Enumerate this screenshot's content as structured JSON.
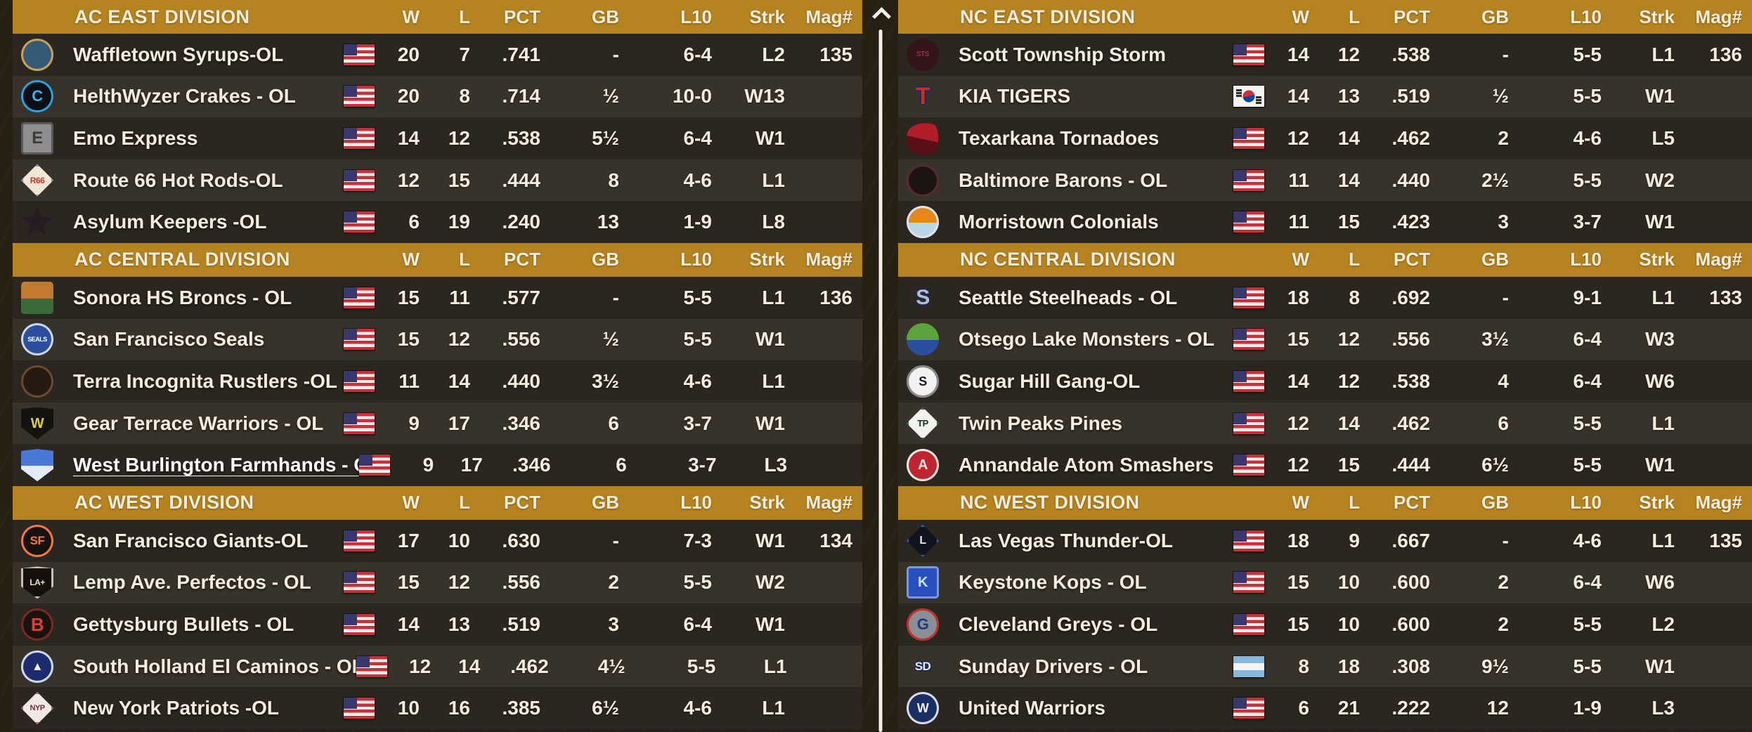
{
  "theme": {
    "header_bg": "#b5831f",
    "row_dark": "#2b2620",
    "row_light": "#37322a",
    "text": "#f4edde",
    "background": "#281f13",
    "scrollbar": "#f2f1ec"
  },
  "columns": [
    "W",
    "L",
    "PCT",
    "GB",
    "L10",
    "Strk",
    "Mag#"
  ],
  "scrollbar": {
    "up_arrow_icon": "chevron-up",
    "thumb": "vertical-line"
  },
  "tables": [
    {
      "side": "left",
      "divisions": [
        {
          "name": "AC EAST DIVISION",
          "teams": [
            {
              "name": "Waffletown Syrups-OL",
              "flag": "usa",
              "w": "20",
              "l": "7",
              "pct": ".741",
              "gb": "-",
              "l10": "6-4",
              "strk": "L2",
              "mag": "135",
              "logo": {
                "shape": "circle",
                "bg": "#355a75",
                "border": "#c9a05a",
                "fg": "#d9b06a",
                "text": "",
                "fs": 14
              }
            },
            {
              "name": "HelthWyzer Crakes - OL",
              "flag": "usa",
              "w": "20",
              "l": "8",
              "pct": ".714",
              "gb": "½",
              "l10": "10-0",
              "strk": "W13",
              "mag": "",
              "logo": {
                "shape": "circle",
                "bg": "#0c1016",
                "border": "#2aa3e0",
                "fg": "#3fb4ec",
                "text": "C",
                "fs": 22
              }
            },
            {
              "name": "Emo Express",
              "flag": "usa",
              "w": "14",
              "l": "12",
              "pct": ".538",
              "gb": "5½",
              "l10": "6-4",
              "strk": "W1",
              "mag": "",
              "logo": {
                "shape": "square",
                "bg": "#8e8e8e",
                "border": "#5a5a5a",
                "fg": "#3c3c3c",
                "text": "E",
                "fs": 24
              }
            },
            {
              "name": "Route 66 Hot Rods-OL",
              "flag": "usa",
              "w": "12",
              "l": "15",
              "pct": ".444",
              "gb": "8",
              "l10": "4-6",
              "strk": "L1",
              "mag": "",
              "logo": {
                "shape": "diamond",
                "bg": "#efe6d6",
                "border": "#8a90bc",
                "fg": "#c23b2e",
                "text": "R66",
                "fs": 12
              }
            },
            {
              "name": "Asylum Keepers -OL",
              "flag": "usa",
              "w": "6",
              "l": "19",
              "pct": ".240",
              "gb": "13",
              "l10": "1-9",
              "strk": "L8",
              "mag": "",
              "logo": {
                "shape": "star",
                "bg": "#241c22",
                "border": "",
                "fg": "#cbb9a2",
                "text": "",
                "fs": 12
              }
            }
          ]
        },
        {
          "name": "AC CENTRAL DIVISION",
          "teams": [
            {
              "name": "Sonora HS Broncs - OL",
              "flag": "usa",
              "w": "15",
              "l": "11",
              "pct": ".577",
              "gb": "-",
              "l10": "5-5",
              "strk": "L1",
              "mag": "136",
              "logo": {
                "shape": "square",
                "bg": "#c27a30",
                "bg2": "#3a6b3a",
                "fg": "#f2e8d8",
                "text": "",
                "fs": 12
              }
            },
            {
              "name": "San Francisco Seals",
              "flag": "usa",
              "w": "15",
              "l": "12",
              "pct": ".556",
              "gb": "½",
              "l10": "5-5",
              "strk": "W1",
              "mag": "",
              "logo": {
                "shape": "circle",
                "bg": "#2b4f9e",
                "border": "#cfd8ea",
                "fg": "#ffffff",
                "text": "SEALS",
                "fs": 9
              }
            },
            {
              "name": "Terra Incognita Rustlers -OL",
              "flag": "usa",
              "w": "11",
              "l": "14",
              "pct": ".440",
              "gb": "3½",
              "l10": "4-6",
              "strk": "L1",
              "mag": "",
              "logo": {
                "shape": "circle",
                "bg": "#241a12",
                "border": "#6b4a32",
                "fg": "#b07848",
                "text": "",
                "fs": 12
              }
            },
            {
              "name": "Gear Terrace Warriors - OL",
              "flag": "usa",
              "w": "9",
              "l": "17",
              "pct": ".346",
              "gb": "6",
              "l10": "3-7",
              "strk": "W1",
              "mag": "",
              "logo": {
                "shape": "shield",
                "bg": "#14140f",
                "border": "",
                "fg": "#e0d040",
                "text": "W",
                "fs": 20
              }
            },
            {
              "name": "West Burlington Farmhands - O",
              "flag": "usa",
              "underline": true,
              "w": "9",
              "l": "17",
              "pct": ".346",
              "gb": "6",
              "l10": "3-7",
              "strk": "L3",
              "mag": "",
              "logo": {
                "shape": "shield",
                "bg": "#4a78d8",
                "bg2": "#e4eaf6",
                "fg": "#c8202c",
                "text": "",
                "fs": 10
              }
            }
          ]
        },
        {
          "name": "AC WEST DIVISION",
          "teams": [
            {
              "name": "San Francisco Giants-OL",
              "flag": "usa",
              "w": "17",
              "l": "10",
              "pct": ".630",
              "gb": "-",
              "l10": "7-3",
              "strk": "W1",
              "mag": "134",
              "logo": {
                "shape": "circle",
                "bg": "#17120e",
                "border": "#f4793e",
                "fg": "#f4793e",
                "text": "SF",
                "fs": 17
              }
            },
            {
              "name": "Lemp Ave. Perfectos - OL",
              "flag": "usa",
              "w": "15",
              "l": "12",
              "pct": ".556",
              "gb": "2",
              "l10": "5-5",
              "strk": "W2",
              "mag": "",
              "logo": {
                "shape": "shield",
                "bg": "#15100c",
                "border": "#c8c0b0",
                "fg": "#e8e0ce",
                "text": "LA+",
                "fs": 12
              }
            },
            {
              "name": "Gettysburg Bullets - OL",
              "flag": "usa",
              "w": "14",
              "l": "13",
              "pct": ".519",
              "gb": "3",
              "l10": "6-4",
              "strk": "W1",
              "mag": "",
              "logo": {
                "shape": "circle",
                "bg": "#1a1210",
                "border": "#7a2a22",
                "fg": "#d8442e",
                "text": "B",
                "fs": 26
              }
            },
            {
              "name": "South Holland El Caminos - OL",
              "flag": "usa",
              "w": "12",
              "l": "14",
              "pct": ".462",
              "gb": "4½",
              "l10": "5-5",
              "strk": "L1",
              "mag": "",
              "logo": {
                "shape": "circle",
                "bg": "#1d2c6e",
                "border": "#d0d8e8",
                "fg": "#f0f2f6",
                "text": "▲",
                "fs": 17
              }
            },
            {
              "name": "New York Patriots -OL",
              "flag": "usa",
              "w": "10",
              "l": "16",
              "pct": ".385",
              "gb": "6½",
              "l10": "4-6",
              "strk": "L1",
              "mag": "",
              "logo": {
                "shape": "diamond",
                "bg": "#f0e9e2",
                "border": "#b06a7a",
                "fg": "#7d2838",
                "text": "NYP",
                "fs": 11
              }
            }
          ]
        }
      ]
    },
    {
      "side": "right",
      "divisions": [
        {
          "name": "NC EAST DIVISION",
          "teams": [
            {
              "name": "Scott Township Storm",
              "flag": "usa",
              "w": "14",
              "l": "12",
              "pct": ".538",
              "gb": "-",
              "l10": "5-5",
              "strk": "L1",
              "mag": "136",
              "logo": {
                "shape": "circle",
                "bg": "#331418",
                "border": "",
                "fg": "#9a3040",
                "text": "STS",
                "fs": 10
              }
            },
            {
              "name": "KIA TIGERS",
              "flag": "kor",
              "w": "14",
              "l": "13",
              "pct": ".519",
              "gb": "½",
              "l10": "5-5",
              "strk": "W1",
              "mag": "",
              "logo": {
                "shape": "none",
                "bg": "",
                "fg": "#d42818",
                "text": "T",
                "fs": 34
              }
            },
            {
              "name": "Texarkana Tornadoes",
              "flag": "usa",
              "w": "12",
              "l": "14",
              "pct": ".462",
              "gb": "2",
              "l10": "4-6",
              "strk": "L5",
              "mag": "",
              "logo": {
                "shape": "pin",
                "bg": "#b01e28",
                "bg2": "#5a0f16",
                "fg": "#f0e8e8",
                "text": "",
                "fs": 12
              }
            },
            {
              "name": "Baltimore Barons - OL",
              "flag": "usa",
              "w": "11",
              "l": "14",
              "pct": ".440",
              "gb": "2½",
              "l10": "5-5",
              "strk": "W2",
              "mag": "",
              "logo": {
                "shape": "circle",
                "bg": "#1b1412",
                "border": "#5a2a30",
                "fg": "#d8d0c8",
                "text": "",
                "fs": 12
              }
            },
            {
              "name": "Morristown Colonials",
              "flag": "usa",
              "w": "11",
              "l": "15",
              "pct": ".423",
              "gb": "3",
              "l10": "3-7",
              "strk": "W1",
              "mag": "",
              "logo": {
                "shape": "circle",
                "bg": "#e8861e",
                "bg2": "#bcd6e8",
                "border": "#d8e4ee",
                "fg": "#c03028",
                "text": "",
                "fs": 10
              }
            }
          ]
        },
        {
          "name": "NC CENTRAL DIVISION",
          "teams": [
            {
              "name": "Seattle Steelheads - OL",
              "flag": "usa",
              "w": "18",
              "l": "8",
              "pct": ".692",
              "gb": "-",
              "l10": "9-1",
              "strk": "L1",
              "mag": "133",
              "logo": {
                "shape": "none",
                "bg": "",
                "fg": "#b8bfc6",
                "text": "S",
                "fs": 30
              }
            },
            {
              "name": "Otsego Lake Monsters - OL",
              "flag": "usa",
              "w": "15",
              "l": "12",
              "pct": ".556",
              "gb": "3½",
              "l10": "6-4",
              "strk": "W3",
              "mag": "",
              "logo": {
                "shape": "circle",
                "bg": "#5aa43a",
                "bg2": "#2a4fa0",
                "fg": "#ffffff",
                "text": "",
                "fs": 12
              }
            },
            {
              "name": "Sugar Hill Gang-OL",
              "flag": "usa",
              "w": "14",
              "l": "12",
              "pct": ".538",
              "gb": "4",
              "l10": "6-4",
              "strk": "W6",
              "mag": "",
              "logo": {
                "shape": "circle",
                "bg": "#f2f2f0",
                "border": "#888888",
                "fg": "#1a1a1a",
                "text": "S",
                "fs": 18
              }
            },
            {
              "name": "Twin Peaks Pines",
              "flag": "usa",
              "w": "12",
              "l": "14",
              "pct": ".462",
              "gb": "6",
              "l10": "5-5",
              "strk": "L1",
              "mag": "",
              "logo": {
                "shape": "diamond",
                "bg": "#f2f2ee",
                "border": "#2f5e3e",
                "fg": "#17312a",
                "text": "TP",
                "fs": 13
              }
            },
            {
              "name": "Annandale Atom Smashers",
              "flag": "usa",
              "w": "12",
              "l": "15",
              "pct": ".444",
              "gb": "6½",
              "l10": "5-5",
              "strk": "W1",
              "mag": "",
              "logo": {
                "shape": "circle",
                "bg": "#c02430",
                "border": "#f0e8e0",
                "fg": "#f0e8e0",
                "text": "A",
                "fs": 20
              }
            }
          ]
        },
        {
          "name": "NC WEST DIVISION",
          "teams": [
            {
              "name": "Las Vegas Thunder-OL",
              "flag": "usa",
              "w": "18",
              "l": "9",
              "pct": ".667",
              "gb": "-",
              "l10": "4-6",
              "strk": "L1",
              "mag": "135",
              "logo": {
                "shape": "diamond",
                "bg": "#10141c",
                "border": "#2a62c8",
                "fg": "#e8e8e8",
                "text": "L",
                "fs": 16
              }
            },
            {
              "name": "Keystone Kops - OL",
              "flag": "usa",
              "w": "15",
              "l": "10",
              "pct": ".600",
              "gb": "2",
              "l10": "6-4",
              "strk": "W6",
              "mag": "",
              "logo": {
                "shape": "square",
                "bg": "#2a50c0",
                "border": "#7a9ae0",
                "fg": "#cfe0ff",
                "text": "K",
                "fs": 20
              }
            },
            {
              "name": "Cleveland Greys - OL",
              "flag": "usa",
              "w": "15",
              "l": "10",
              "pct": ".600",
              "gb": "2",
              "l10": "5-5",
              "strk": "L2",
              "mag": "",
              "logo": {
                "shape": "circle",
                "bg": "#8a8f96",
                "border": "#c03028",
                "fg": "#203a80",
                "text": "G",
                "fs": 22
              }
            },
            {
              "name": "Sunday Drivers - OL",
              "flag": "arg",
              "w": "8",
              "l": "18",
              "pct": ".308",
              "gb": "9½",
              "l10": "5-5",
              "strk": "W1",
              "mag": "",
              "logo": {
                "shape": "none",
                "bg": "",
                "fg": "#ece8e0",
                "text": "SD",
                "fs": 17
              }
            },
            {
              "name": "United Warriors",
              "flag": "usa",
              "w": "6",
              "l": "21",
              "pct": ".222",
              "gb": "12",
              "l10": "1-9",
              "strk": "L3",
              "mag": "",
              "logo": {
                "shape": "circle",
                "bg": "#1a2e66",
                "border": "#d8dce8",
                "fg": "#f0f2f8",
                "text": "W",
                "fs": 18
              }
            }
          ]
        }
      ]
    }
  ]
}
